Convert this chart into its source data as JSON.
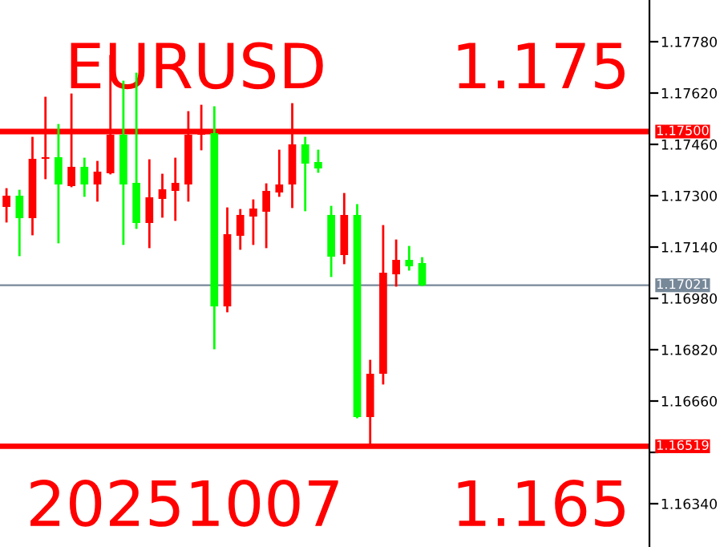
{
  "chart_data": {
    "type": "candlestick",
    "categories": [
      null,
      null,
      null,
      null,
      null,
      null,
      null,
      null,
      null,
      null,
      null,
      null,
      null,
      null,
      null,
      null,
      null,
      null,
      null,
      null,
      null,
      null,
      null,
      null,
      null,
      null,
      null,
      null,
      null,
      null,
      null,
      null,
      null,
      null,
      null,
      null,
      null,
      null,
      null,
      null,
      null,
      null,
      null,
      null,
      null,
      null,
      null,
      null,
      null,
      null
    ],
    "ohlc": [
      [
        1.17265,
        1.1732,
        1.1722,
        1.173
      ],
      [
        1.173,
        1.17315,
        1.17115,
        1.1723
      ],
      [
        1.1723,
        1.1748,
        1.1718,
        1.17415
      ],
      [
        1.17415,
        1.17605,
        1.17355,
        1.1742
      ],
      [
        1.1742,
        1.1752,
        1.17155,
        1.17335
      ],
      [
        1.1733,
        1.17615,
        1.1733,
        1.1739
      ],
      [
        1.1739,
        1.17415,
        1.173,
        1.17335
      ],
      [
        1.17335,
        1.17405,
        1.17285,
        1.17375
      ],
      [
        1.1737,
        1.17735,
        1.1737,
        1.1749
      ],
      [
        1.1749,
        1.17655,
        1.1715,
        1.17335
      ],
      [
        1.1734,
        1.1768,
        1.172,
        1.17215
      ],
      [
        1.17215,
        1.1741,
        1.1714,
        1.17295
      ],
      [
        1.1729,
        1.17365,
        1.17235,
        1.1732
      ],
      [
        1.17315,
        1.17415,
        1.17225,
        1.1734
      ],
      [
        1.17335,
        1.1756,
        1.17285,
        1.1749
      ],
      [
        1.1749,
        1.1758,
        1.17445,
        1.175
      ],
      [
        1.17495,
        1.17575,
        1.16825,
        1.16955
      ],
      [
        1.16955,
        1.1726,
        1.1694,
        1.1718
      ],
      [
        1.17175,
        1.17255,
        1.17135,
        1.1724
      ],
      [
        1.17235,
        1.17285,
        1.1715,
        1.1726
      ],
      [
        1.1725,
        1.17335,
        1.1714,
        1.17315
      ],
      [
        1.1731,
        1.1744,
        1.173,
        1.17335
      ],
      [
        1.17335,
        1.17585,
        1.17265,
        1.1746
      ],
      [
        1.1746,
        1.1748,
        1.17255,
        1.174
      ],
      [
        1.17405,
        1.1744,
        1.17375,
        1.17385
      ],
      [
        1.1724,
        1.17265,
        1.1705,
        1.1711
      ],
      [
        1.17115,
        1.17305,
        1.1709,
        1.1724
      ],
      [
        1.1724,
        1.1727,
        1.1661,
        1.1661
      ],
      [
        1.1661,
        1.16785,
        1.16519,
        1.16745
      ],
      [
        1.16745,
        1.17205,
        1.16715,
        1.1706
      ],
      [
        1.17055,
        1.1716,
        1.1702,
        1.171
      ],
      [
        1.171,
        1.1714,
        1.1707,
        1.1708
      ],
      [
        1.1709,
        1.17105,
        1.17021,
        1.17021
      ],
      null,
      null,
      null,
      null,
      null,
      null,
      null,
      null,
      null,
      null,
      null,
      null,
      null,
      null,
      null,
      null,
      null
    ],
    "colors": [
      "#ff0000",
      "#00ff00",
      "#ff0000",
      "#ff0000",
      "#00ff00",
      "#ff0000",
      "#00ff00",
      "#ff0000",
      "#ff0000",
      "#00ff00",
      "#00ff00",
      "#ff0000",
      "#ff0000",
      "#ff0000",
      "#ff0000",
      "#ff0000",
      "#00ff00",
      "#ff0000",
      "#ff0000",
      "#ff0000",
      "#ff0000",
      "#ff0000",
      "#ff0000",
      "#00ff00",
      "#00ff00",
      "#00ff00",
      "#ff0000",
      "#00ff00",
      "#ff0000",
      "#ff0000",
      "#ff0000",
      "#00ff00",
      "#00ff00",
      null,
      null,
      null,
      null,
      null,
      null,
      null,
      null,
      null,
      null,
      null,
      null,
      null,
      null,
      null,
      null,
      null
    ],
    "ylim": [
      1.16205,
      1.1791
    ],
    "yticks": [
      {
        "value": 1.1778,
        "label": "1.17780"
      },
      {
        "value": 1.1762,
        "label": "1.17620"
      },
      {
        "value": 1.1746,
        "label": "1.17460"
      },
      {
        "value": 1.173,
        "label": "1.17300"
      },
      {
        "value": 1.1714,
        "label": "1.17140"
      },
      {
        "value": 1.1698,
        "label": "1.16980"
      },
      {
        "value": 1.1682,
        "label": "1.16820"
      },
      {
        "value": 1.1666,
        "label": "1.16660"
      },
      {
        "value": 1.165,
        "label": null
      },
      {
        "value": 1.1634,
        "label": "1.16340"
      }
    ],
    "ref_lines": [
      {
        "axis": "y",
        "value": 1.175,
        "label": "1.17500",
        "color": "#ff0000"
      },
      {
        "axis": "y",
        "value": 1.16519,
        "label": "1.16519",
        "color": "#ff0000"
      },
      {
        "axis": "y",
        "value": 1.17021,
        "label": "1.17021",
        "color": "#778899"
      }
    ],
    "annotations": [
      "EURUSD",
      "1.175",
      "20251007",
      "1.165"
    ],
    "grid": false
  }
}
